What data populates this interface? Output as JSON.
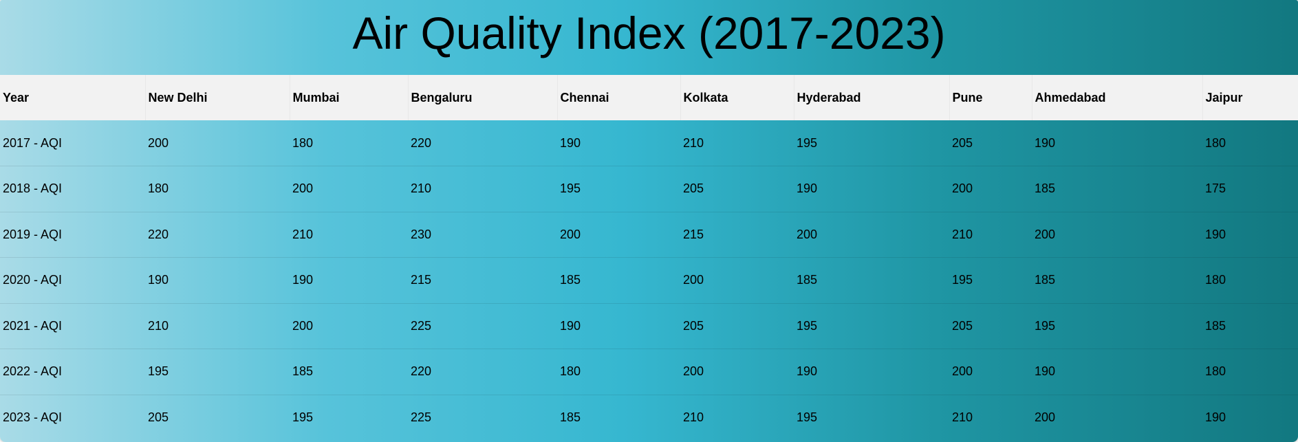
{
  "chart_data": {
    "type": "table",
    "title": "Air Quality Index (2017-2023)",
    "columns": [
      "Year",
      "New Delhi",
      "Mumbai",
      "Bengaluru",
      "Chennai",
      "Kolkata",
      "Hyderabad",
      "Pune",
      "Ahmedabad",
      "Jaipur"
    ],
    "rows": [
      [
        "2017 - AQI",
        "200",
        "180",
        "220",
        "190",
        "210",
        "195",
        "205",
        "190",
        "180"
      ],
      [
        "2018 - AQI",
        "180",
        "200",
        "210",
        "195",
        "205",
        "190",
        "200",
        "185",
        "175"
      ],
      [
        "2019 - AQI",
        "220",
        "210",
        "230",
        "200",
        "215",
        "200",
        "210",
        "200",
        "190"
      ],
      [
        "2020 - AQI",
        "190",
        "190",
        "215",
        "185",
        "200",
        "185",
        "195",
        "185",
        "180"
      ],
      [
        "2021 - AQI",
        "210",
        "200",
        "225",
        "190",
        "205",
        "195",
        "205",
        "195",
        "185"
      ],
      [
        "2022 - AQI",
        "195",
        "185",
        "220",
        "180",
        "200",
        "190",
        "200",
        "190",
        "180"
      ],
      [
        "2023 - AQI",
        "205",
        "195",
        "225",
        "185",
        "210",
        "195",
        "210",
        "200",
        "190"
      ]
    ]
  },
  "colors": {
    "gradient_start": "#a9dbe7",
    "gradient_mid": "#36b7d0",
    "gradient_end": "#127880",
    "header_background": "#f2f2f2",
    "text": "#000000"
  }
}
